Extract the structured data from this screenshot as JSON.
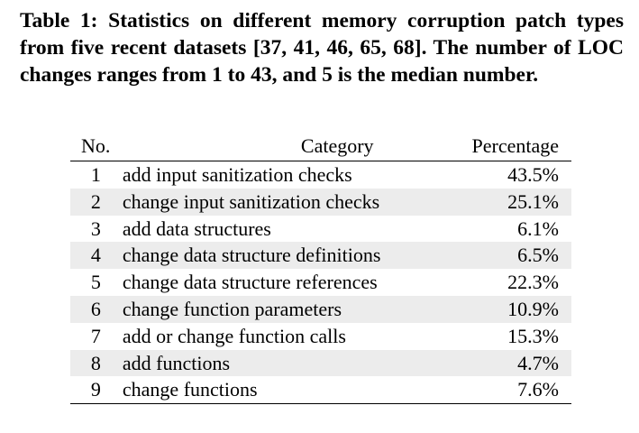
{
  "caption": "Table 1: Statistics on different memory corruption patch types from five recent datasets [37, 41, 46, 65, 68]. The number of LOC changes ranges from 1 to 43, and 5 is the median number.",
  "table": {
    "headers": {
      "no": "No.",
      "category": "Category",
      "percentage": "Percentage"
    },
    "rows": [
      {
        "no": "1",
        "category": "add input sanitization checks",
        "percentage": "43.5%"
      },
      {
        "no": "2",
        "category": "change input sanitization checks",
        "percentage": "25.1%"
      },
      {
        "no": "3",
        "category": "add data structures",
        "percentage": "6.1%"
      },
      {
        "no": "4",
        "category": "change data structure definitions",
        "percentage": "6.5%"
      },
      {
        "no": "5",
        "category": "change data structure references",
        "percentage": "22.3%"
      },
      {
        "no": "6",
        "category": "change function parameters",
        "percentage": "10.9%"
      },
      {
        "no": "7",
        "category": "add or change function calls",
        "percentage": "15.3%"
      },
      {
        "no": "8",
        "category": "add functions",
        "percentage": "4.7%"
      },
      {
        "no": "9",
        "category": "change functions",
        "percentage": "7.6%"
      }
    ]
  }
}
